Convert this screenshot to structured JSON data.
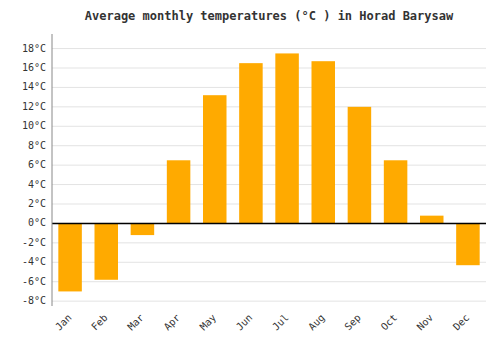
{
  "chart_data": {
    "type": "bar",
    "title": "Average monthly temperatures (°C ) in Horad Barysaw",
    "categories": [
      "Jan",
      "Feb",
      "Mar",
      "Apr",
      "May",
      "Jun",
      "Jul",
      "Aug",
      "Sep",
      "Oct",
      "Nov",
      "Dec"
    ],
    "values": [
      -7.0,
      -5.8,
      -1.2,
      6.5,
      13.2,
      16.5,
      17.5,
      16.7,
      12.0,
      6.5,
      0.8,
      -4.3
    ],
    "color": "#FFAA00",
    "ylim": [
      -8.5,
      19.5
    ],
    "yticks": [
      {
        "value": -8,
        "label": "-8°C"
      },
      {
        "value": -6,
        "label": "-6°C"
      },
      {
        "value": -4,
        "label": "-4°C"
      },
      {
        "value": -2,
        "label": "-2°C"
      },
      {
        "value": 0,
        "label": "0°C"
      },
      {
        "value": 2,
        "label": "2°C"
      },
      {
        "value": 4,
        "label": "4°C"
      },
      {
        "value": 6,
        "label": "6°C"
      },
      {
        "value": 8,
        "label": "8°C"
      },
      {
        "value": 10,
        "label": "10°C"
      },
      {
        "value": 12,
        "label": "12°C"
      },
      {
        "value": 14,
        "label": "14°C"
      },
      {
        "value": 16,
        "label": "16°C"
      },
      {
        "value": 18,
        "label": "18°C"
      }
    ],
    "grid": true
  }
}
